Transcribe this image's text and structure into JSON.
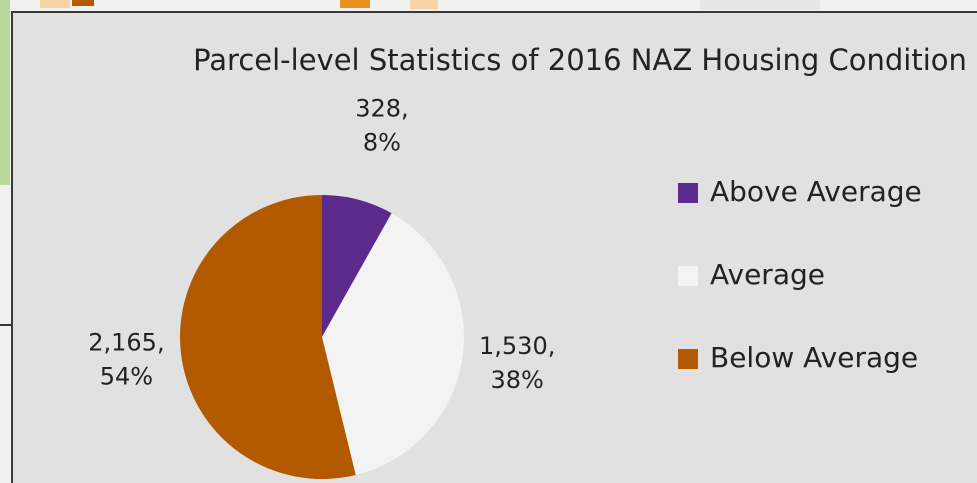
{
  "chart_data": {
    "type": "pie",
    "title": "Parcel-level Statistics of 2016 NAZ Housing Condition",
    "categories": [
      "Above Average",
      "Average",
      "Below Average"
    ],
    "values": [
      328,
      1530,
      2165
    ],
    "value_labels": [
      "328,",
      "1,530,",
      "2,165,"
    ],
    "percent_labels": [
      "8%",
      "38%",
      "54%"
    ],
    "colors": [
      "#5c2a8c",
      "#f3f3f3",
      "#b35a00"
    ],
    "legend": "right"
  }
}
